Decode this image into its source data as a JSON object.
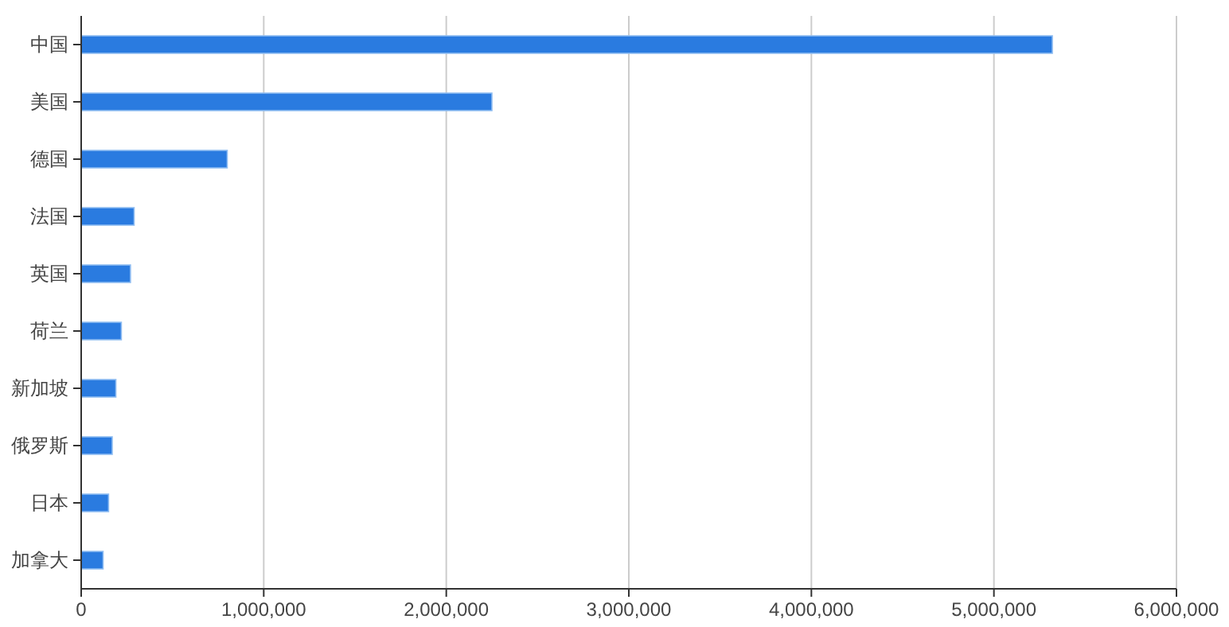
{
  "chart_data": {
    "type": "bar",
    "orientation": "horizontal",
    "categories": [
      "中国",
      "美国",
      "德国",
      "法国",
      "英国",
      "荷兰",
      "新加坡",
      "俄罗斯",
      "日本",
      "加拿大"
    ],
    "values": [
      5320000,
      2250000,
      800000,
      290000,
      270000,
      220000,
      190000,
      170000,
      150000,
      120000
    ],
    "color": "#2a7be0",
    "xlim": [
      0,
      6000000
    ],
    "xticks": [
      {
        "value": 0,
        "label": "0"
      },
      {
        "value": 1000000,
        "label": "1,000,000"
      },
      {
        "value": 2000000,
        "label": "2,000,000"
      },
      {
        "value": 3000000,
        "label": "3,000,000"
      },
      {
        "value": 4000000,
        "label": "4,000,000"
      },
      {
        "value": 5000000,
        "label": "5,000,000"
      },
      {
        "value": 6000000,
        "label": "6,000,000"
      }
    ],
    "grid": "x"
  }
}
